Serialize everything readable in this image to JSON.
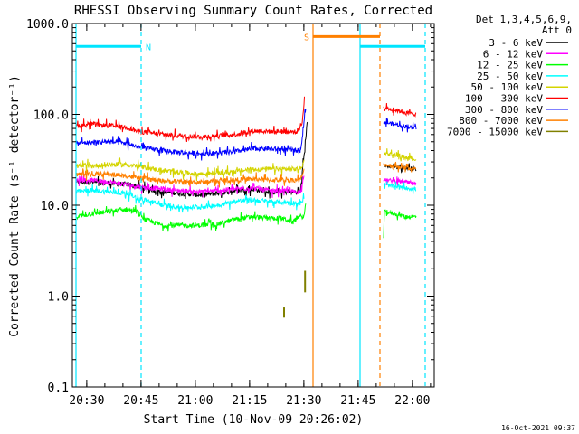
{
  "chart_data": {
    "type": "line",
    "title": "RHESSI Observing Summary Count Rates, Corrected",
    "xlabel": "Start Time (10-Nov-09 20:26:02)",
    "ylabel": "Corrected Count Rate (s⁻¹ detector⁻¹)",
    "ylog": true,
    "ylim": [
      0.1,
      1000
    ],
    "xlim_minutes": [
      0,
      100
    ],
    "xticks": [
      {
        "label": "20:30",
        "m": 3.97
      },
      {
        "label": "20:45",
        "m": 18.97
      },
      {
        "label": "21:00",
        "m": 33.97
      },
      {
        "label": "21:15",
        "m": 48.97
      },
      {
        "label": "21:30",
        "m": 63.97
      },
      {
        "label": "21:45",
        "m": 78.97
      },
      {
        "label": "22:00",
        "m": 93.97
      }
    ],
    "yticks": [
      {
        "label": "1000.0",
        "v": 1000
      },
      {
        "label": "100.0",
        "v": 100
      },
      {
        "label": "10.0",
        "v": 10
      },
      {
        "label": "1.0",
        "v": 1
      },
      {
        "label": "0.1",
        "v": 0.1
      }
    ],
    "legend_header": [
      "Det 1,3,4,5,6,9,",
      "Att 0"
    ],
    "legend_position": "right, outside plot",
    "series": [
      {
        "name": "3 - 6 keV",
        "color": "#000000",
        "points": [
          [
            1,
            18
          ],
          [
            5,
            18
          ],
          [
            10,
            17.5
          ],
          [
            15,
            17
          ],
          [
            18,
            16
          ],
          [
            25,
            14
          ],
          [
            30,
            13.5
          ],
          [
            35,
            13
          ],
          [
            40,
            13.5
          ],
          [
            45,
            14.5
          ],
          [
            50,
            15
          ],
          [
            54,
            14
          ],
          [
            63,
            14
          ],
          [
            64,
            35
          ],
          [
            65,
            90
          ]
        ],
        "points2": [
          [
            86,
            27
          ],
          [
            89,
            27
          ],
          [
            92,
            26
          ],
          [
            95,
            25
          ]
        ]
      },
      {
        "name": "6 - 12 keV",
        "color": "#ff00ff",
        "points": [
          [
            1,
            19
          ],
          [
            5,
            19
          ],
          [
            10,
            18
          ],
          [
            15,
            17
          ],
          [
            18,
            16
          ],
          [
            25,
            15
          ],
          [
            30,
            14.5
          ],
          [
            35,
            14
          ],
          [
            40,
            14.5
          ],
          [
            45,
            15
          ],
          [
            50,
            15.5
          ],
          [
            54,
            14.5
          ],
          [
            63,
            14
          ],
          [
            64,
            22
          ]
        ],
        "points2": [
          [
            86,
            19
          ],
          [
            89,
            18.5
          ],
          [
            92,
            18
          ],
          [
            95,
            17
          ]
        ]
      },
      {
        "name": "12 - 25 keV",
        "color": "#00ff00",
        "points": [
          [
            1,
            7.5
          ],
          [
            5,
            8
          ],
          [
            10,
            8.5
          ],
          [
            15,
            9
          ],
          [
            18,
            8.5
          ],
          [
            20,
            7
          ],
          [
            25,
            6
          ],
          [
            30,
            6
          ],
          [
            35,
            6
          ],
          [
            40,
            6.2
          ],
          [
            45,
            7
          ],
          [
            50,
            7.5
          ],
          [
            54,
            7.2
          ],
          [
            58,
            7.2
          ],
          [
            61,
            6.5
          ],
          [
            62,
            7.5
          ],
          [
            64,
            7.5
          ],
          [
            64.5,
            10
          ]
        ],
        "points2": [
          [
            86,
            4.5
          ],
          [
            86.2,
            8.5
          ],
          [
            89,
            8
          ],
          [
            92,
            7.5
          ],
          [
            95,
            7.5
          ]
        ]
      },
      {
        "name": "25 - 50 keV",
        "color": "#00ffff",
        "points": [
          [
            1,
            14
          ],
          [
            5,
            14.5
          ],
          [
            10,
            14
          ],
          [
            15,
            13.5
          ],
          [
            18,
            12
          ],
          [
            25,
            10
          ],
          [
            30,
            9.5
          ],
          [
            35,
            9.5
          ],
          [
            40,
            10
          ],
          [
            45,
            11
          ],
          [
            50,
            11.5
          ],
          [
            54,
            11
          ],
          [
            63,
            10.5
          ],
          [
            64,
            12
          ]
        ],
        "points2": [
          [
            86,
            17
          ],
          [
            89,
            16
          ],
          [
            92,
            15.5
          ],
          [
            95,
            15
          ]
        ]
      },
      {
        "name": "50 - 100 keV",
        "color": "#d4d400",
        "points": [
          [
            1,
            27
          ],
          [
            5,
            27
          ],
          [
            10,
            28
          ],
          [
            15,
            28
          ],
          [
            18,
            27
          ],
          [
            25,
            24
          ],
          [
            30,
            23
          ],
          [
            35,
            22
          ],
          [
            40,
            22.5
          ],
          [
            45,
            23.5
          ],
          [
            50,
            25
          ],
          [
            54,
            25
          ],
          [
            63,
            25
          ],
          [
            64,
            30
          ]
        ],
        "points2": [
          [
            86,
            38
          ],
          [
            89,
            36
          ],
          [
            92,
            34
          ],
          [
            95,
            32
          ]
        ]
      },
      {
        "name": "100 - 300 keV",
        "color": "#ff0000",
        "points": [
          [
            1,
            75
          ],
          [
            5,
            78
          ],
          [
            10,
            75
          ],
          [
            15,
            72
          ],
          [
            18,
            65
          ],
          [
            25,
            60
          ],
          [
            30,
            58
          ],
          [
            35,
            57
          ],
          [
            40,
            58
          ],
          [
            45,
            60
          ],
          [
            50,
            66
          ],
          [
            54,
            65
          ],
          [
            62,
            64
          ],
          [
            63.5,
            80
          ],
          [
            64.2,
            165
          ]
        ],
        "points2": [
          [
            86,
            118
          ],
          [
            89,
            112
          ],
          [
            92,
            105
          ],
          [
            95,
            100
          ]
        ]
      },
      {
        "name": "300 - 800 keV",
        "color": "#0000ff",
        "points": [
          [
            1,
            48
          ],
          [
            5,
            49
          ],
          [
            10,
            50
          ],
          [
            15,
            48
          ],
          [
            18,
            44
          ],
          [
            25,
            40
          ],
          [
            30,
            38
          ],
          [
            35,
            37
          ],
          [
            40,
            37.5
          ],
          [
            45,
            39
          ],
          [
            50,
            42
          ],
          [
            54,
            42
          ],
          [
            63,
            40
          ],
          [
            64,
            80
          ],
          [
            64.5,
            120
          ]
        ],
        "points2": [
          [
            86,
            82
          ],
          [
            89,
            78
          ],
          [
            92,
            74
          ],
          [
            95,
            70
          ]
        ]
      },
      {
        "name": "800 - 7000 keV",
        "color": "#ff8000",
        "points": [
          [
            1,
            22
          ],
          [
            5,
            22
          ],
          [
            10,
            22
          ],
          [
            15,
            21
          ],
          [
            18,
            20
          ],
          [
            25,
            18.5
          ],
          [
            30,
            18
          ],
          [
            35,
            18
          ],
          [
            40,
            18.5
          ],
          [
            45,
            19
          ],
          [
            50,
            19.5
          ],
          [
            54,
            19
          ],
          [
            63,
            19
          ],
          [
            64,
            24
          ]
        ],
        "points2": [
          [
            86,
            28
          ],
          [
            89,
            27
          ],
          [
            92,
            26
          ],
          [
            95,
            25
          ]
        ]
      },
      {
        "name": "7000 - 15000 keV",
        "color": "#808000",
        "points": [
          [
            58.5,
            0.58
          ],
          [
            58.5,
            0.75
          ]
        ],
        "points2": [
          [
            64.3,
            1.1
          ],
          [
            64.3,
            1.9
          ]
        ]
      }
    ],
    "flags": [
      {
        "label": "N",
        "color": "#00e5ff",
        "type": "bar",
        "y": 560,
        "from": 1,
        "to": 19
      },
      {
        "label": "S",
        "color": "#ff8000",
        "type": "bar",
        "y": 720,
        "from": 66.5,
        "to": 85
      },
      {
        "color": "#00e5ff",
        "type": "bar",
        "y": 560,
        "from": 79.5,
        "to": 97.5
      }
    ],
    "vlines": [
      {
        "m": 1,
        "color": "#00e5ff",
        "style": "solid"
      },
      {
        "m": 19,
        "color": "#00e5ff",
        "style": "dashed"
      },
      {
        "m": 66.5,
        "color": "#ff8000",
        "style": "solid"
      },
      {
        "m": 79.5,
        "color": "#00e5ff",
        "style": "solid"
      },
      {
        "m": 85,
        "color": "#ff8000",
        "style": "dashed"
      },
      {
        "m": 97.5,
        "color": "#00e5ff",
        "style": "dashed"
      }
    ]
  },
  "footer": {
    "timestamp": "16-Oct-2021 09:37"
  }
}
